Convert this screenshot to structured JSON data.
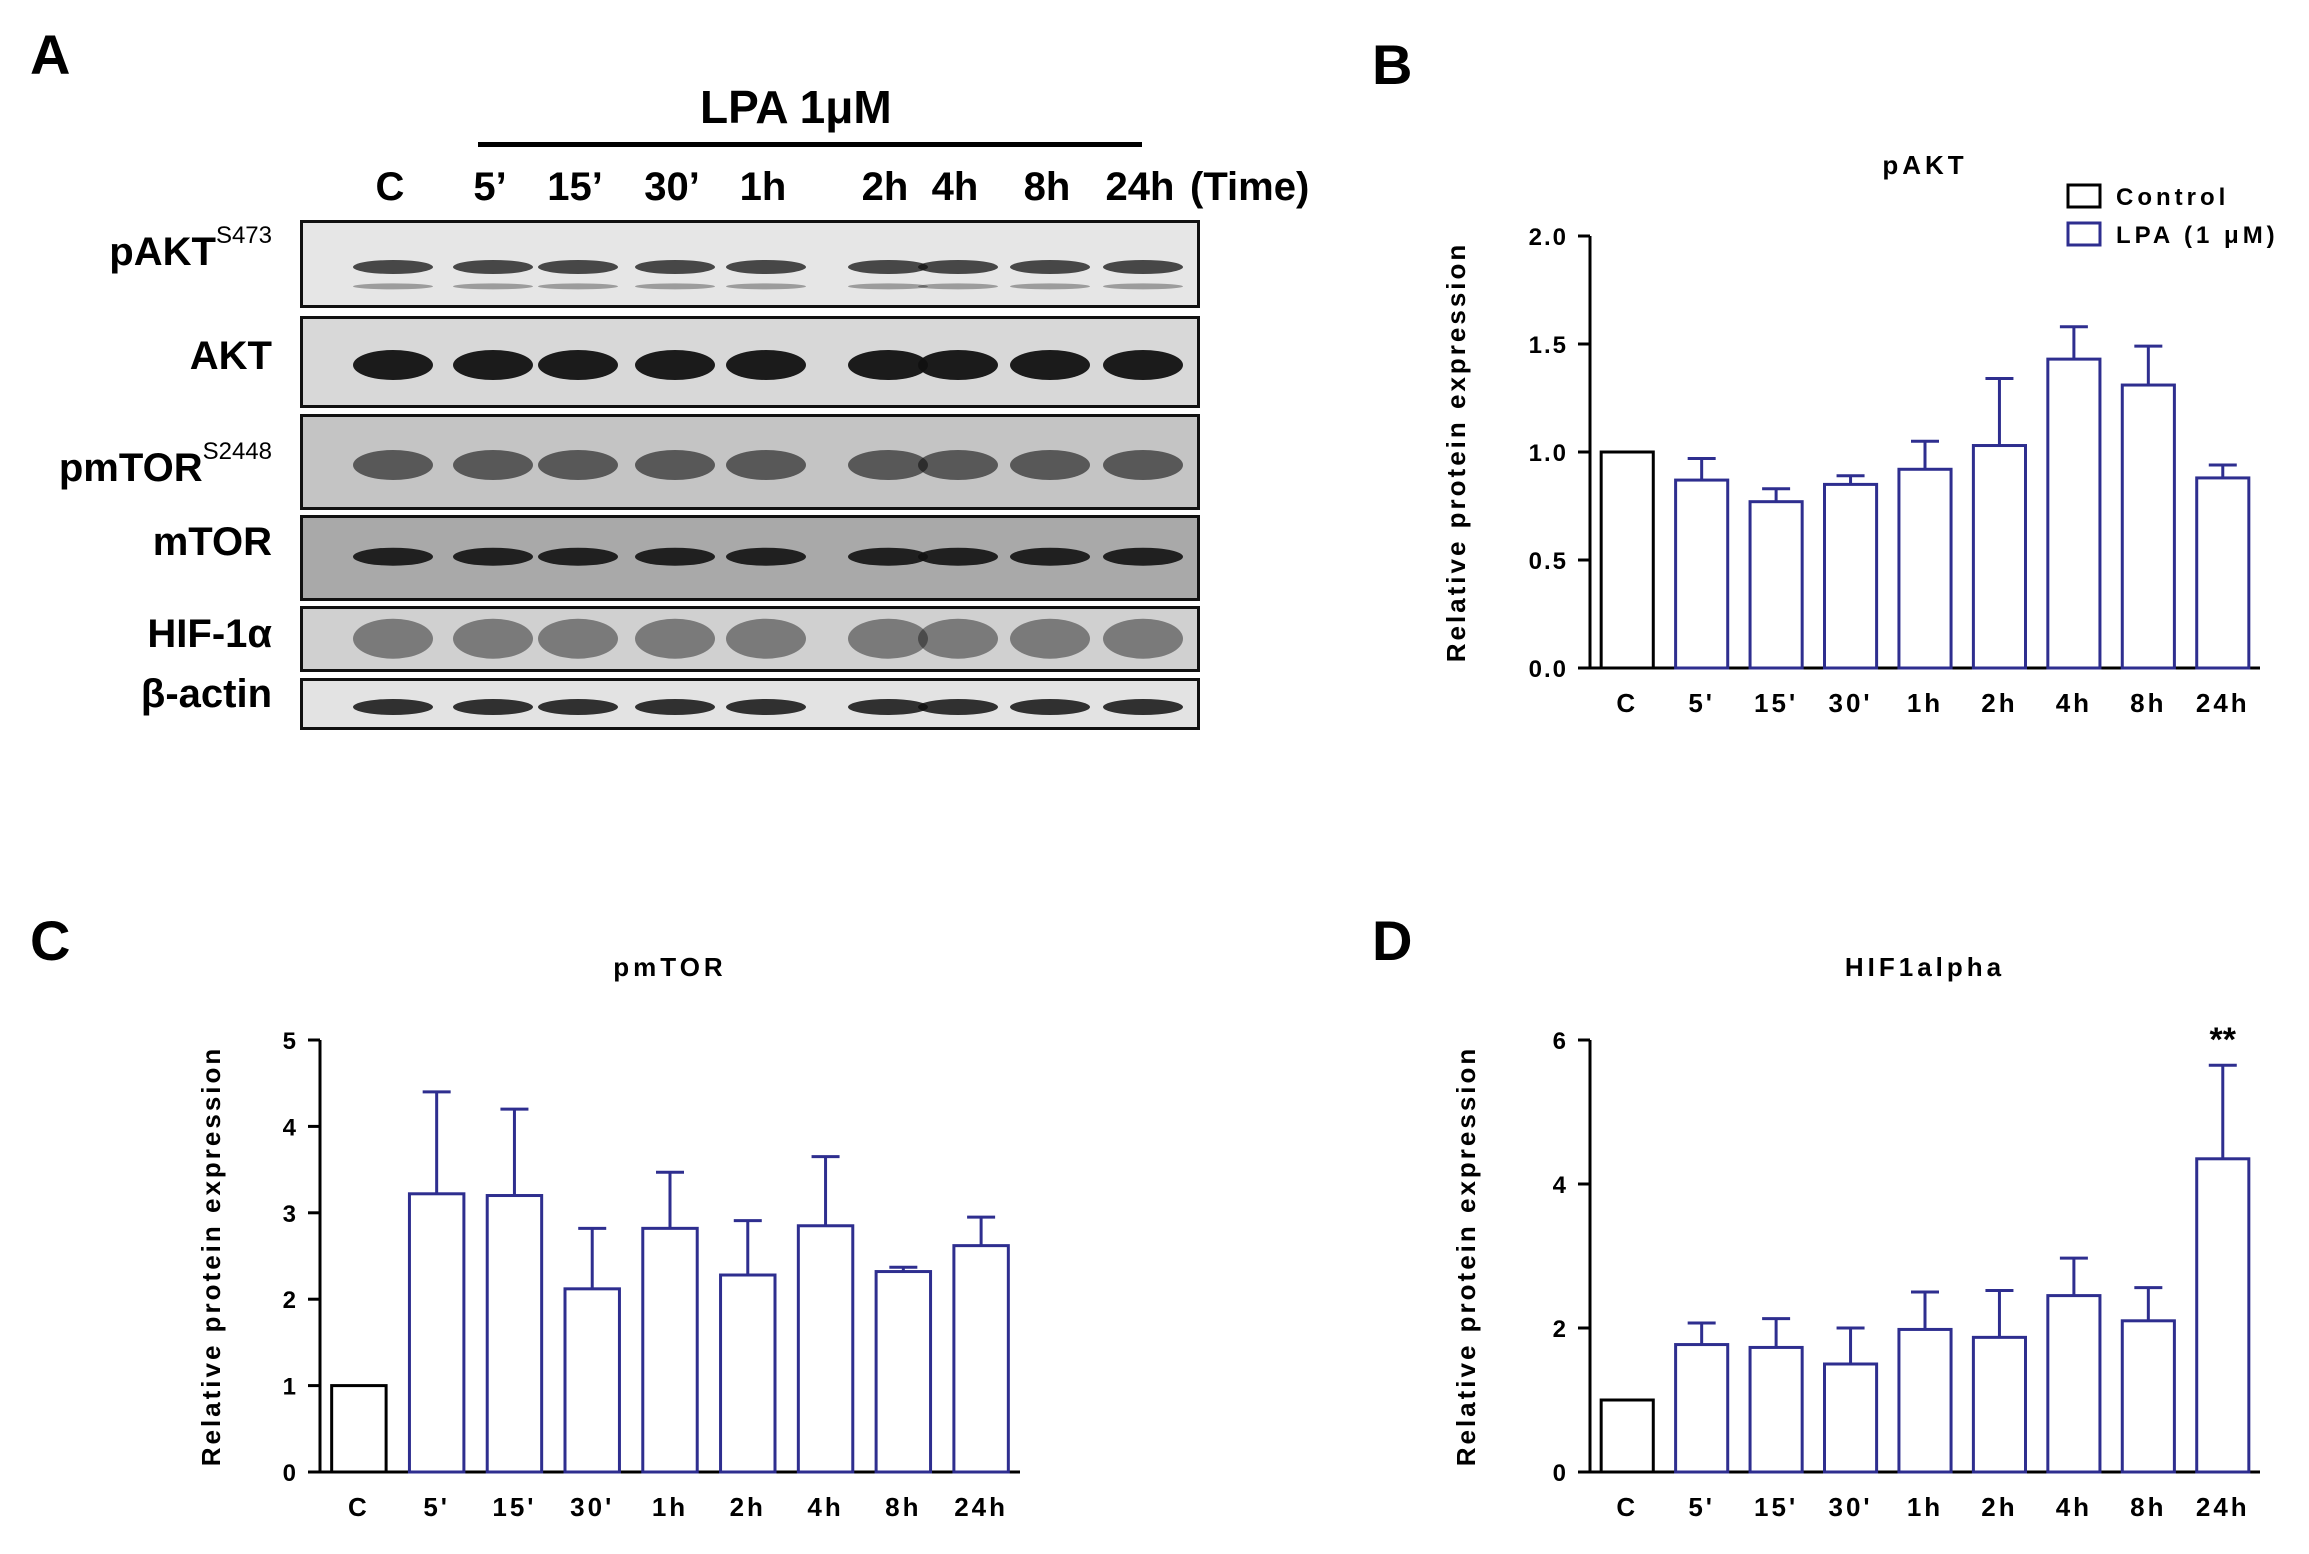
{
  "panels": {
    "a": "A",
    "b": "B",
    "c": "C",
    "d": "D"
  },
  "western_blot": {
    "treatment_label": "LPA 1μM",
    "lanes": [
      "C",
      "5’",
      "15’",
      "30’",
      "1h",
      "2h",
      "4h",
      "8h",
      "24h"
    ],
    "time_label": "(Time)",
    "proteins": [
      {
        "name": "pAKT",
        "sup": "S473"
      },
      {
        "name": "AKT",
        "sup": ""
      },
      {
        "name": "pmTOR",
        "sup": "S2448"
      },
      {
        "name": "mTOR",
        "sup": ""
      },
      {
        "name": "HIF-1α",
        "sup": ""
      },
      {
        "name": "β-actin",
        "sup": ""
      }
    ]
  },
  "chart_data": [
    {
      "type": "bar",
      "title": "pAKT",
      "ylabel": "Relative protein expression",
      "categories": [
        "C",
        "5'",
        "15'",
        "30'",
        "1h",
        "2h",
        "4h",
        "8h",
        "24h"
      ],
      "values": [
        1.0,
        0.87,
        0.77,
        0.85,
        0.92,
        1.03,
        1.43,
        1.31,
        0.88
      ],
      "errors": [
        0.0,
        0.1,
        0.06,
        0.04,
        0.13,
        0.31,
        0.15,
        0.18,
        0.06
      ],
      "ylim": [
        0,
        2.0
      ],
      "yticks": [
        "0.0",
        "0.5",
        "1.0",
        "1.5",
        "2.0"
      ],
      "series_colors": [
        "#000000",
        "#2e2e8f",
        "#2e2e8f",
        "#2e2e8f",
        "#2e2e8f",
        "#2e2e8f",
        "#2e2e8f",
        "#2e2e8f",
        "#2e2e8f"
      ],
      "legend": [
        {
          "name": "Control",
          "color": "#000000"
        },
        {
          "name": "LPA (1 μM)",
          "color": "#2e2e8f"
        }
      ],
      "legend_position": "top-right",
      "annotations": []
    },
    {
      "type": "bar",
      "title": "pmTOR",
      "ylabel": "Relative protein expression",
      "categories": [
        "C",
        "5'",
        "15'",
        "30'",
        "1h",
        "2h",
        "4h",
        "8h",
        "24h"
      ],
      "values": [
        1.0,
        3.22,
        3.2,
        2.12,
        2.82,
        2.28,
        2.85,
        2.32,
        2.62
      ],
      "errors": [
        0.0,
        1.18,
        1.0,
        0.7,
        0.65,
        0.63,
        0.8,
        0.05,
        0.33
      ],
      "ylim": [
        0,
        5
      ],
      "yticks": [
        "0",
        "1",
        "2",
        "3",
        "4",
        "5"
      ],
      "series_colors": [
        "#000000",
        "#2e2e8f",
        "#2e2e8f",
        "#2e2e8f",
        "#2e2e8f",
        "#2e2e8f",
        "#2e2e8f",
        "#2e2e8f",
        "#2e2e8f"
      ],
      "annotations": []
    },
    {
      "type": "bar",
      "title": "HIF1alpha",
      "ylabel": "Relative protein expression",
      "categories": [
        "C",
        "5'",
        "15'",
        "30'",
        "1h",
        "2h",
        "4h",
        "8h",
        "24h"
      ],
      "values": [
        1.0,
        1.77,
        1.73,
        1.5,
        1.98,
        1.87,
        2.45,
        2.1,
        4.35
      ],
      "errors": [
        0.0,
        0.3,
        0.4,
        0.5,
        0.52,
        0.65,
        0.52,
        0.46,
        1.3
      ],
      "ylim": [
        0,
        6
      ],
      "yticks": [
        "0",
        "2",
        "4",
        "6"
      ],
      "series_colors": [
        "#000000",
        "#2e2e8f",
        "#2e2e8f",
        "#2e2e8f",
        "#2e2e8f",
        "#2e2e8f",
        "#2e2e8f",
        "#2e2e8f",
        "#2e2e8f"
      ],
      "annotations": [
        {
          "category": "24h",
          "text": "**"
        }
      ]
    }
  ]
}
